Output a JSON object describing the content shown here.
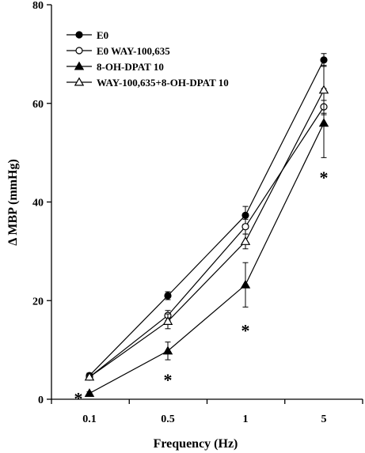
{
  "chart_data": {
    "type": "line",
    "title": "",
    "xlabel": "Frequency (Hz)",
    "ylabel": "Δ MBP (mmHg)",
    "x": [
      "0.1",
      "0.5",
      "1",
      "5"
    ],
    "ylim": [
      0,
      80
    ],
    "yticks": [
      0,
      20,
      40,
      60,
      80
    ],
    "grid": false,
    "legend_position": "top-left",
    "series": [
      {
        "name": "E0",
        "marker": "filled-circle",
        "values": [
          4.8,
          21.0,
          37.3,
          68.8
        ],
        "errors": [
          0.5,
          0.8,
          1.8,
          1.3
        ]
      },
      {
        "name": "E0 WAY-100,635",
        "marker": "open-circle",
        "values": [
          4.5,
          17.0,
          35.0,
          59.3
        ],
        "errors": [
          0.4,
          1.0,
          1.5,
          1.3
        ]
      },
      {
        "name": "8-OH-DPAT 10",
        "marker": "filled-triangle",
        "values": [
          1.2,
          9.8,
          23.2,
          56.0
        ],
        "errors": [
          0.3,
          1.8,
          4.5,
          7.0
        ]
      },
      {
        "name": "WAY-100,635+8-OH-DPAT 10",
        "marker": "open-triangle",
        "values": [
          4.5,
          15.8,
          32.0,
          62.7
        ],
        "errors": [
          0.4,
          1.5,
          1.5,
          5.0
        ]
      }
    ],
    "annotations": [
      {
        "text": "*",
        "x": "0.1",
        "y": 1.2,
        "placement": "left"
      },
      {
        "text": "*",
        "x": "0.5",
        "y": 5.0,
        "placement": "below"
      },
      {
        "text": "*",
        "x": "1",
        "y": 15.0,
        "placement": "below"
      },
      {
        "text": "*",
        "x": "5",
        "y": 46.0,
        "placement": "below"
      }
    ]
  }
}
